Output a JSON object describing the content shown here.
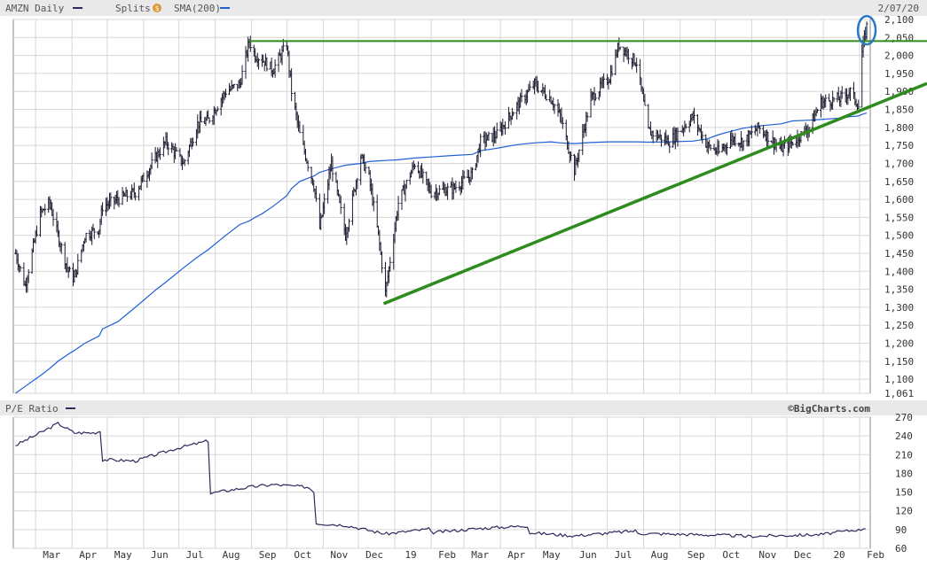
{
  "header": {
    "symbol_label": "AMZN Daily",
    "splits_label": "Splits",
    "splits_icon": "dollar-coin-icon",
    "sma_label": "SMA(200)",
    "date_label": "2/07/20",
    "symbol_color": "#2b2b5e",
    "sma_color": "#1f5fd6"
  },
  "lower": {
    "label": "P/E Ratio",
    "line_color": "#2b2b5e",
    "credit": "©BigCharts.com"
  },
  "chart_data": [
    {
      "type": "line",
      "title": "AMZN Daily",
      "price_style": "ohlc-bars",
      "x_ticks": [
        "Mar",
        "Apr",
        "May",
        "Jun",
        "Jul",
        "Aug",
        "Sep",
        "Oct",
        "Nov",
        "Dec",
        "19",
        "Feb",
        "Mar",
        "Apr",
        "May",
        "Jun",
        "Jul",
        "Aug",
        "Sep",
        "Oct",
        "Nov",
        "Dec",
        "20",
        "Feb"
      ],
      "y_ticks": [
        "2,100",
        "2,050",
        "2,000",
        "1,950",
        "1,900",
        "1,850",
        "1,800",
        "1,750",
        "1,700",
        "1,650",
        "1,600",
        "1,550",
        "1,500",
        "1,450",
        "1,400",
        "1,350",
        "1,300",
        "1,250",
        "1,200",
        "1,150",
        "1,100",
        "1,061"
      ],
      "ylim": [
        1061,
        2100
      ],
      "grid": true,
      "x": [
        "2018-02-12",
        "2018-02-20",
        "2018-03-05",
        "2018-03-13",
        "2018-03-20",
        "2018-03-29",
        "2018-04-03",
        "2018-04-12",
        "2018-04-24",
        "2018-04-27",
        "2018-05-10",
        "2018-05-25",
        "2018-06-12",
        "2018-06-20",
        "2018-07-05",
        "2018-07-17",
        "2018-07-26",
        "2018-08-10",
        "2018-08-22",
        "2018-08-30",
        "2018-09-04",
        "2018-09-10",
        "2018-09-19",
        "2018-10-01",
        "2018-10-05",
        "2018-10-12",
        "2018-10-24",
        "2018-10-29",
        "2018-11-08",
        "2018-11-20",
        "2018-12-03",
        "2018-12-10",
        "2018-12-18",
        "2018-12-24",
        "2019-01-04",
        "2019-01-18",
        "2019-02-01",
        "2019-02-20",
        "2019-03-08",
        "2019-03-15",
        "2019-03-29",
        "2019-04-15",
        "2019-04-30",
        "2019-05-14",
        "2019-05-22",
        "2019-06-03",
        "2019-06-17",
        "2019-07-03",
        "2019-07-11",
        "2019-07-26",
        "2019-08-05",
        "2019-08-23",
        "2019-09-12",
        "2019-09-24",
        "2019-10-04",
        "2019-10-15",
        "2019-10-25",
        "2019-11-07",
        "2019-11-26",
        "2019-12-06",
        "2019-12-20",
        "2019-12-30",
        "2020-01-15",
        "2020-01-24",
        "2020-01-31",
        "2020-02-03",
        "2020-02-07"
      ],
      "series": [
        {
          "name": "",
          "values": [
            1450,
            1360,
            1560,
            1590,
            1500,
            1400,
            1380,
            1500,
            1520,
            1580,
            1600,
            1620,
            1720,
            1760,
            1700,
            1810,
            1820,
            1900,
            1920,
            2040,
            2000,
            1990,
            1960,
            2030,
            1900,
            1780,
            1640,
            1520,
            1700,
            1500,
            1720,
            1660,
            1500,
            1340,
            1590,
            1700,
            1620,
            1630,
            1670,
            1760,
            1780,
            1860,
            1920,
            1880,
            1830,
            1680,
            1880,
            1940,
            2030,
            1980,
            1790,
            1760,
            1830,
            1750,
            1730,
            1770,
            1760,
            1800,
            1740,
            1760,
            1800,
            1870,
            1880,
            1900,
            1860,
            2010,
            2080
          ]
        },
        {
          "name": "SMA(200)",
          "values": [
            1061,
            1080,
            1110,
            1130,
            1150,
            1170,
            1180,
            1200,
            1220,
            1240,
            1260,
            1300,
            1350,
            1370,
            1410,
            1440,
            1460,
            1500,
            1530,
            1540,
            1550,
            1560,
            1580,
            1610,
            1630,
            1650,
            1665,
            1675,
            1685,
            1695,
            1700,
            1705,
            1707,
            1708,
            1710,
            1715,
            1718,
            1722,
            1725,
            1735,
            1742,
            1752,
            1757,
            1760,
            1757,
            1755,
            1758,
            1760,
            1760,
            1760,
            1759,
            1760,
            1762,
            1768,
            1780,
            1790,
            1798,
            1804,
            1810,
            1818,
            1820,
            1822,
            1826,
            1830,
            1832,
            1836,
            1840
          ]
        }
      ],
      "annotations": {
        "resistance_level": 2040,
        "support_trendline": [
          {
            "x": "2018-12-24",
            "y": 1310
          },
          {
            "x": "2020-02-10",
            "y": 1858
          }
        ],
        "circled": {
          "x": "2020-02-07",
          "y": 2080
        }
      }
    },
    {
      "type": "line",
      "title": "P/E Ratio",
      "x_ticks": [
        "Mar",
        "Apr",
        "May",
        "Jun",
        "Jul",
        "Aug",
        "Sep",
        "Oct",
        "Nov",
        "Dec",
        "19",
        "Feb",
        "Mar",
        "Apr",
        "May",
        "Jun",
        "Jul",
        "Aug",
        "Sep",
        "Oct",
        "Nov",
        "Dec",
        "20",
        "Feb"
      ],
      "y_ticks": [
        "270",
        "240",
        "210",
        "180",
        "150",
        "120",
        "90",
        "60"
      ],
      "ylim": [
        60,
        270
      ],
      "grid": true,
      "x": [
        "2018-02-12",
        "2018-03-05",
        "2018-03-20",
        "2018-04-03",
        "2018-04-20",
        "2018-04-26",
        "2018-04-27",
        "2018-05-25",
        "2018-06-29",
        "2018-07-26",
        "2018-07-27",
        "2018-08-30",
        "2018-09-19",
        "2018-10-19",
        "2018-10-25",
        "2018-10-26",
        "2018-11-20",
        "2018-12-24",
        "2019-01-31",
        "2019-02-01",
        "2019-03-15",
        "2019-04-25",
        "2019-04-26",
        "2019-06-03",
        "2019-07-25",
        "2019-07-26",
        "2019-09-12",
        "2019-10-24",
        "2019-10-25",
        "2019-12-30",
        "2020-01-30",
        "2020-01-31",
        "2020-02-07"
      ],
      "series": [
        {
          "name": "P/E Ratio",
          "values": [
            225,
            245,
            260,
            245,
            245,
            248,
            202,
            200,
            220,
            232,
            148,
            158,
            162,
            158,
            150,
            100,
            97,
            83,
            91,
            85,
            92,
            96,
            85,
            80,
            88,
            84,
            82,
            80,
            79,
            82,
            90,
            89,
            94
          ]
        }
      ]
    }
  ]
}
